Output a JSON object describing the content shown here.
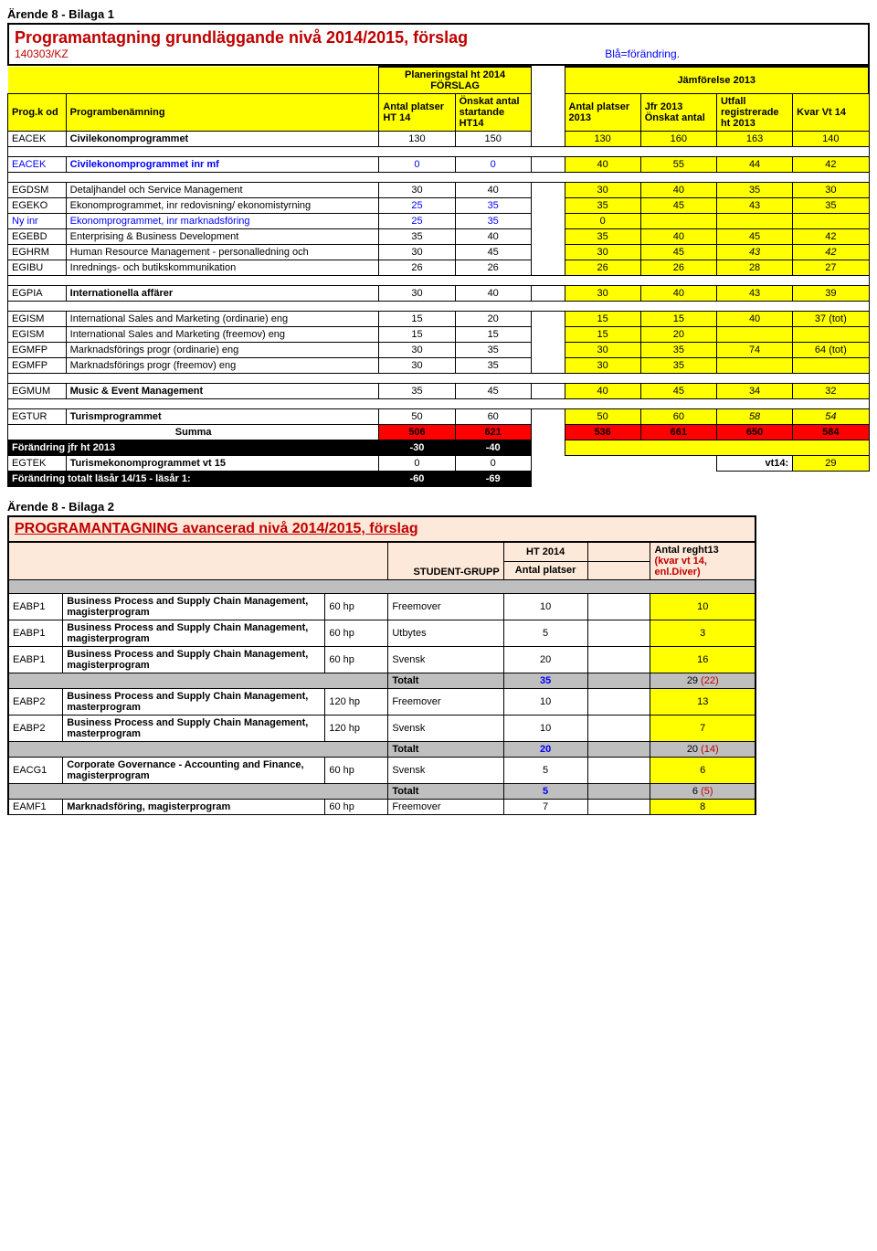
{
  "header": {
    "arendeLine": "Ärende 8 - Bilaga 1",
    "title": "Programantagning grundläggande nivå 2014/2015, förslag",
    "ref": "140303/KZ",
    "blueNote": "Blå=förändring.",
    "planHeader": "Planeringstal ht 2014 FÖRSLAG",
    "compareHeader": "Jämförelse 2013",
    "colHead": {
      "code": "Prog.k od",
      "name": "Programbenämning",
      "antal": "Antal platser HT 14",
      "onskat": "Önskat antal startande HT14",
      "antal2013": "Antal platser 2013",
      "jfr": "Jfr 2013 Önskat antal",
      "utfall": "Utfall registrerade ht 2013",
      "kvar": "Kvar Vt 14"
    }
  },
  "rows": [
    {
      "code": "EACEK",
      "name": "Civilekonomprogrammet",
      "a": "130",
      "b": "150",
      "c": "130",
      "d": "160",
      "e": "163",
      "f": "140"
    },
    {
      "code": "EACEK",
      "name": "Civilekonomprogrammet inr mf",
      "a": "0",
      "b": "0",
      "c": "40",
      "d": "55",
      "e": "44",
      "f": "42",
      "blue": true
    },
    {
      "code": "EGDSM",
      "name": "Detaljhandel och Service Management",
      "a": "30",
      "b": "40",
      "c": "30",
      "d": "40",
      "e": "35",
      "f": "30"
    },
    {
      "code": "EGEKO",
      "name": "Ekonomprogrammet, inr redovisning/ ekonomistyrning",
      "a": "25",
      "b": "35",
      "c": "35",
      "d": "45",
      "e": "43",
      "f": "35",
      "blueA": true,
      "blueB": true
    },
    {
      "code": "Ny inr",
      "name": "Ekonomprogrammet, inr marknadsföring",
      "a": "25",
      "b": "35",
      "c": "0",
      "blue": true,
      "empty": true
    },
    {
      "code": "EGEBD",
      "name": "Enterprising & Business Development",
      "a": "35",
      "b": "40",
      "c": "35",
      "d": "40",
      "e": "45",
      "f": "42"
    },
    {
      "code": "EGHRM",
      "name": "Human Resource Management - personalledning och",
      "a": "30",
      "b": "45",
      "c": "30",
      "d": "45",
      "e": "43",
      "f": "42",
      "italicE": true,
      "italicF": true
    },
    {
      "code": "EGIBU",
      "name": "Inrednings- och butikskommunikation",
      "a": "26",
      "b": "26",
      "c": "26",
      "d": "26",
      "e": "28",
      "f": "27"
    },
    {
      "code": "EGPIA",
      "name": "Internationella affärer",
      "a": "30",
      "b": "40",
      "c": "30",
      "d": "40",
      "e": "43",
      "f": "39"
    },
    {
      "code": "EGISM",
      "name": "International Sales and Marketing (ordinarie) eng",
      "a": "15",
      "b": "20",
      "c": "15",
      "d": "15",
      "e": "40",
      "f": "37 (tot)"
    },
    {
      "code": "EGISM",
      "name": "International Sales and Marketing (freemov) eng",
      "a": "15",
      "b": "15",
      "c": "15",
      "d": "20",
      "empty2": true
    },
    {
      "code": "EGMFP",
      "name": "Marknadsförings progr (ordinarie) eng",
      "a": "30",
      "b": "35",
      "c": "30",
      "d": "35",
      "e": "74",
      "f": "64 (tot)"
    },
    {
      "code": "EGMFP",
      "name": "Marknadsförings progr (freemov)        eng",
      "a": "30",
      "b": "35",
      "c": "30",
      "d": "35",
      "empty2": true
    },
    {
      "code": "EGMUM",
      "name": "Music & Event Management",
      "a": "35",
      "b": "45",
      "c": "40",
      "d": "45",
      "e": "34",
      "f": "32"
    },
    {
      "code": "EGTUR",
      "name": "Turismprogrammet",
      "a": "50",
      "b": "60",
      "c": "50",
      "d": "60",
      "e": "58",
      "f": "54",
      "italicE": true,
      "italicF": true
    }
  ],
  "summa": {
    "label": "Summa",
    "a": "506",
    "b": "621",
    "c": "536",
    "d": "661",
    "e": "650",
    "f": "584"
  },
  "forandring1": {
    "label": "Förändring jfr ht 2013",
    "a": "-30",
    "b": "-40"
  },
  "egtek": {
    "code": "EGTEK",
    "name": "Turismekonomprogrammet vt 15",
    "a": "0",
    "b": "0",
    "vt14": "vt14:",
    "val": "29"
  },
  "forandring2": {
    "label": "Förändring totalt läsår 14/15 - läsår 1:",
    "a": "-60",
    "b": "-69"
  },
  "section2": {
    "arendeLine": "Ärende 8 - Bilaga 2",
    "title": "PROGRAMANTAGNING avancerad nivå 2014/2015, förslag",
    "headers": {
      "student": "STUDENT-GRUPP",
      "ht": "HT 2014",
      "antal": "Antal platser",
      "reg": "Antal reght13",
      "kvar": "(kvar vt 14, enl.Diver)"
    },
    "rows": [
      {
        "code": "EABP1",
        "name": "Business Process and Supply Chain Management, magisterprogram",
        "hp": "60 hp",
        "grp": "Freemover",
        "pl": "10",
        "reg": "10"
      },
      {
        "code": "EABP1",
        "name": "Business Process and Supply Chain Management, magisterprogram",
        "hp": "60 hp",
        "grp": "Utbytes",
        "pl": "5",
        "reg": "3"
      },
      {
        "code": "EABP1",
        "name": "Business Process and Supply Chain Management, magisterprogram",
        "hp": "60 hp",
        "grp": "Svensk",
        "pl": "20",
        "reg": "16"
      },
      {
        "totalt": true,
        "label": "Totalt",
        "pl": "35",
        "reg": "29 (22)"
      },
      {
        "code": "EABP2",
        "name": "Business Process and Supply Chain Management, masterprogram",
        "hp": "120 hp",
        "grp": "Freemover",
        "pl": "10",
        "reg": "13"
      },
      {
        "code": "EABP2",
        "name": "Business Process and Supply Chain Management, masterprogram",
        "hp": "120 hp",
        "grp": "Svensk",
        "pl": "10",
        "reg": "7"
      },
      {
        "totalt": true,
        "label": "Totalt",
        "pl": "20",
        "reg": "20 (14)"
      },
      {
        "code": "EACG1",
        "name": "Corporate Governance - Accounting and Finance, magisterprogram",
        "hp": "60 hp",
        "grp": "Svensk",
        "pl": "5",
        "reg": "6"
      },
      {
        "totalt": true,
        "label": "Totalt",
        "pl": "5",
        "reg": "6 (5)"
      },
      {
        "code": "EAMF1",
        "name": "Marknadsföring, magisterprogram",
        "hp": "60 hp",
        "grp": "Freemover",
        "pl": "7",
        "reg": "8"
      }
    ]
  }
}
